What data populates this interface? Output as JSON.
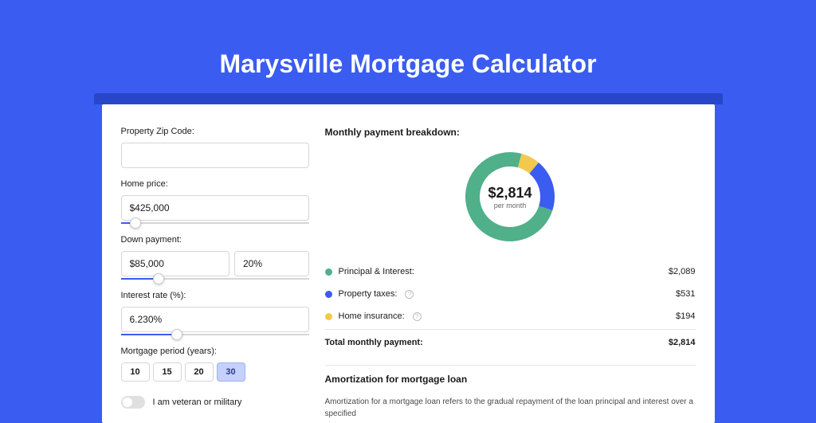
{
  "title": "Marysville Mortgage Calculator",
  "colors": {
    "page_bg": "#3a5cf0",
    "shadow_strip": "#2846c9",
    "card_bg": "#ffffff",
    "text": "#1a1a1a",
    "input_border": "#d6d6d6",
    "slider_fill": "#3a5cf0"
  },
  "form": {
    "zip": {
      "label": "Property Zip Code:",
      "value": ""
    },
    "home_price": {
      "label": "Home price:",
      "value": "$425,000",
      "slider_pct": 8
    },
    "down_payment": {
      "label": "Down payment:",
      "amount": "$85,000",
      "percent": "20%",
      "slider_pct": 20
    },
    "interest": {
      "label": "Interest rate (%):",
      "value": "6.230%",
      "slider_pct": 30
    },
    "period": {
      "label": "Mortgage period (years):",
      "options": [
        "10",
        "15",
        "20",
        "30"
      ],
      "selected": "30"
    },
    "veteran": {
      "label": "I am veteran or military",
      "checked": false
    }
  },
  "breakdown": {
    "title": "Monthly payment breakdown:",
    "donut": {
      "amount": "$2,814",
      "sub": "per month",
      "type": "donut",
      "slices": [
        {
          "key": "principal_interest",
          "value": 2089,
          "color": "#4fb08a"
        },
        {
          "key": "property_taxes",
          "value": 531,
          "color": "#3a5cf0"
        },
        {
          "key": "home_insurance",
          "value": 194,
          "color": "#f2c94c"
        }
      ],
      "ring_width": 18,
      "bg": "#ffffff"
    },
    "items": [
      {
        "label": "Principal & Interest:",
        "amount": "$2,089",
        "color": "#4fb08a",
        "info": false
      },
      {
        "label": "Property taxes:",
        "amount": "$531",
        "color": "#3a5cf0",
        "info": true
      },
      {
        "label": "Home insurance:",
        "amount": "$194",
        "color": "#f2c94c",
        "info": true
      }
    ],
    "total": {
      "label": "Total monthly payment:",
      "amount": "$2,814"
    }
  },
  "amort": {
    "title": "Amortization for mortgage loan",
    "body": "Amortization for a mortgage loan refers to the gradual repayment of the loan principal and interest over a specified"
  }
}
